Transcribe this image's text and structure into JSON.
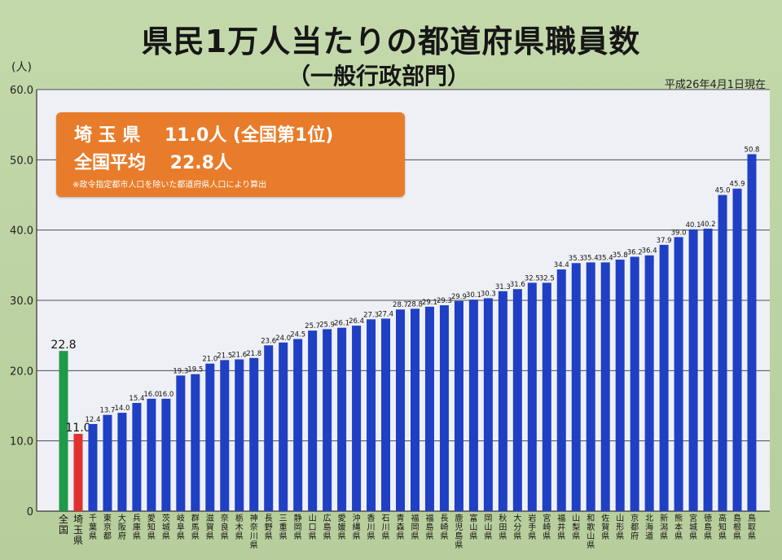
{
  "title": "県民1万人当たりの都道府県職員数",
  "subtitle": "（一般行政部門）",
  "as_of": "平成26年4月1日現在",
  "unit_label": "(人)",
  "callout": {
    "line1": "埼 玉 県　 11.0人 (全国第1位)",
    "line2": "全国平均　 22.8人",
    "note": "※政令指定都市人口を除いた都道府県人口により算出"
  },
  "colors": {
    "bar": "#1f3fc4",
    "national": "#1f9a4a",
    "highlight": "#e03030",
    "callout": "#e87c2a",
    "plot_bg": "#eef0f5"
  },
  "chart_data": {
    "type": "bar",
    "ylim": [
      0,
      60
    ],
    "yticks": [
      "0",
      "10.0",
      "20.0",
      "30.0",
      "40.0",
      "50.0",
      "60.0"
    ],
    "grid": true,
    "categories": [
      "全国",
      "埼玉県",
      "千葉県",
      "東京都",
      "大阪府",
      "兵庫県",
      "愛知県",
      "茨城県",
      "岐阜県",
      "群馬県",
      "滋賀県",
      "奈良県",
      "栃木県",
      "神奈川県",
      "長野県",
      "三重県",
      "静岡県",
      "山口県",
      "広島県",
      "愛媛県",
      "沖縄県",
      "香川県",
      "石川県",
      "青森県",
      "福岡県",
      "福島県",
      "長崎県",
      "鹿児島県",
      "富山県",
      "岡山県",
      "秋田県",
      "大分県",
      "岩手県",
      "宮崎県",
      "福井県",
      "山梨県",
      "和歌山県",
      "佐賀県",
      "山形県",
      "京都府",
      "北海道",
      "新潟県",
      "熊本県",
      "宮城県",
      "徳島県",
      "高知県",
      "島根県",
      "鳥取県"
    ],
    "values": [
      22.8,
      11.0,
      12.4,
      13.7,
      14.0,
      15.4,
      16.0,
      16.0,
      19.3,
      19.5,
      21.0,
      21.5,
      21.6,
      21.8,
      23.6,
      24.0,
      24.5,
      25.7,
      25.9,
      26.1,
      26.4,
      27.3,
      27.4,
      28.7,
      28.8,
      29.1,
      29.3,
      29.9,
      30.1,
      30.3,
      31.3,
      31.6,
      32.5,
      32.5,
      34.4,
      35.3,
      35.4,
      35.4,
      35.8,
      36.2,
      36.4,
      37.9,
      39.0,
      40.1,
      40.2,
      45.0,
      45.9,
      50.8
    ],
    "value_labels": [
      "22.8",
      "11.0",
      "12.4",
      "13.7",
      "14.0",
      "15.4",
      "16.0",
      "16.0",
      "19.3",
      "19.5",
      "21.0",
      "21.5",
      "21.6",
      "21.8",
      "23.6",
      "24.0",
      "24.5",
      "25.7",
      "25.9",
      "26.1",
      "26.4",
      "27.3",
      "27.4",
      "28.7",
      "28.8",
      "29.1",
      "29.3",
      "29.9",
      "30.1",
      "30.3",
      "31.3",
      "31.6",
      "32.5",
      "32.5",
      "34.4",
      "35.3",
      "35.4",
      "35.4",
      "35.8",
      "36.2",
      "36.4",
      "37.9",
      "39.0",
      "40.1",
      "40.2",
      "45.0",
      "45.9",
      "50.8"
    ]
  }
}
